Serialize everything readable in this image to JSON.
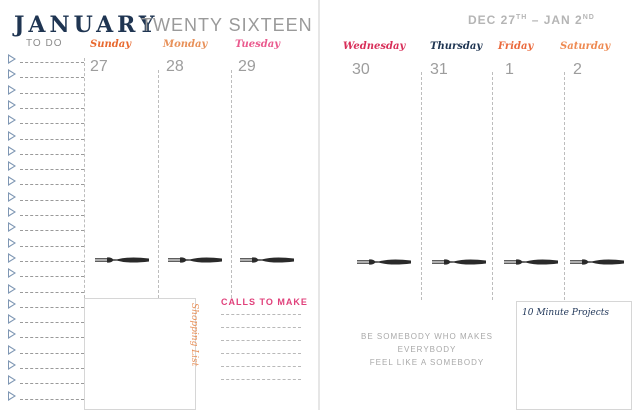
{
  "header": {
    "month": "JANUARY",
    "year": "TWENTY SIXTEEN",
    "range_start": "DEC 27",
    "range_start_suffix": "TH",
    "range_sep": " – ",
    "range_end": "JAN 2",
    "range_end_suffix": "ND"
  },
  "todo": {
    "title": "TO DO",
    "rows": 23
  },
  "days": [
    {
      "name": "Sunday",
      "num": "27",
      "color": "#e8692f"
    },
    {
      "name": "Monday",
      "num": "28",
      "color": "#e8915a"
    },
    {
      "name": "Tuesday",
      "num": "29",
      "color": "#ea5a8e"
    },
    {
      "name": "Wednesday",
      "num": "30",
      "color": "#d8305a"
    },
    {
      "name": "Thursday",
      "num": "31",
      "color": "#1f3552"
    },
    {
      "name": "Friday",
      "num": "1",
      "color": "#ea6a3d"
    },
    {
      "name": "Saturday",
      "num": "2",
      "color": "#ee8a52"
    }
  ],
  "shopping": {
    "title": "Shopping List"
  },
  "calls": {
    "title": "CALLS TO MAKE"
  },
  "quote": {
    "line1": "BE SOMEBODY WHO MAKES EVERYBODY",
    "line2": "FEEL LIKE A SOMEBODY"
  },
  "projects": {
    "title": "10 Minute Projects"
  },
  "icons": {
    "fork": "fork-icon",
    "todo_marker": "triangle-icon"
  }
}
